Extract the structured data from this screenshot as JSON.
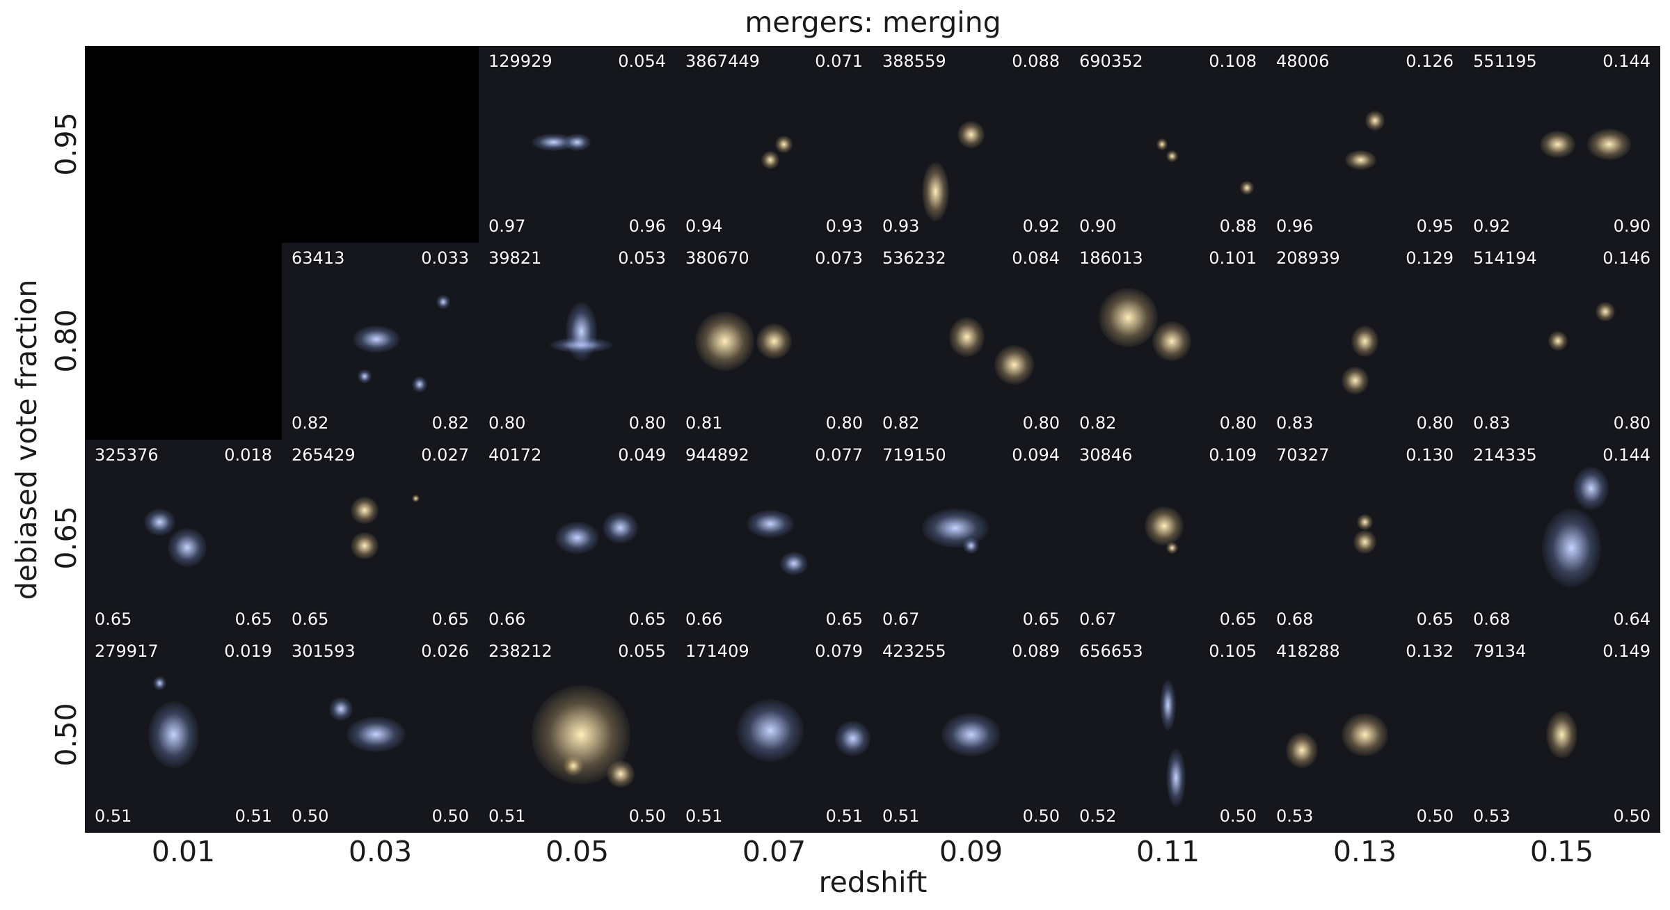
{
  "title": "mergers: merging",
  "x_label": "redshift",
  "y_label": "debiased vote fraction",
  "x_ticks": [
    "0.01",
    "0.03",
    "0.05",
    "0.07",
    "0.09",
    "0.11",
    "0.13",
    "0.15"
  ],
  "y_ticks": [
    "0.95",
    "0.80",
    "0.65",
    "0.50"
  ],
  "rows": [
    {
      "cells": [
        {
          "empty": true
        },
        {
          "empty": true
        },
        {
          "id": "129929",
          "z": "0.054",
          "bl": "0.97",
          "br": "0.96",
          "color": "blue"
        },
        {
          "id": "3867449",
          "z": "0.071",
          "bl": "0.94",
          "br": "0.93",
          "color": "yellow"
        },
        {
          "id": "388559",
          "z": "0.088",
          "bl": "0.93",
          "br": "0.92",
          "color": "yellow"
        },
        {
          "id": "690352",
          "z": "0.108",
          "bl": "0.90",
          "br": "0.88",
          "color": "yellow"
        },
        {
          "id": "48006",
          "z": "0.126",
          "bl": "0.96",
          "br": "0.95",
          "color": "yellow"
        },
        {
          "id": "551195",
          "z": "0.144",
          "bl": "0.92",
          "br": "0.90",
          "color": "yellow"
        }
      ]
    },
    {
      "cells": [
        {
          "empty": true
        },
        {
          "id": "63413",
          "z": "0.033",
          "bl": "0.82",
          "br": "0.82",
          "color": "blue"
        },
        {
          "id": "39821",
          "z": "0.053",
          "bl": "0.80",
          "br": "0.80",
          "color": "blue"
        },
        {
          "id": "380670",
          "z": "0.073",
          "bl": "0.81",
          "br": "0.80",
          "color": "yellow"
        },
        {
          "id": "536232",
          "z": "0.084",
          "bl": "0.82",
          "br": "0.80",
          "color": "yellow"
        },
        {
          "id": "186013",
          "z": "0.101",
          "bl": "0.82",
          "br": "0.80",
          "color": "yellow"
        },
        {
          "id": "208939",
          "z": "0.129",
          "bl": "0.83",
          "br": "0.80",
          "color": "yellow"
        },
        {
          "id": "514194",
          "z": "0.146",
          "bl": "0.83",
          "br": "0.80",
          "color": "yellow"
        }
      ]
    },
    {
      "cells": [
        {
          "id": "325376",
          "z": "0.018",
          "bl": "0.65",
          "br": "0.65",
          "color": "blue"
        },
        {
          "id": "265429",
          "z": "0.027",
          "bl": "0.65",
          "br": "0.65",
          "color": "yellow"
        },
        {
          "id": "40172",
          "z": "0.049",
          "bl": "0.66",
          "br": "0.65",
          "color": "blue"
        },
        {
          "id": "944892",
          "z": "0.077",
          "bl": "0.66",
          "br": "0.65",
          "color": "blue"
        },
        {
          "id": "719150",
          "z": "0.094",
          "bl": "0.67",
          "br": "0.65",
          "color": "blue"
        },
        {
          "id": "30846",
          "z": "0.109",
          "bl": "0.67",
          "br": "0.65",
          "color": "yellow"
        },
        {
          "id": "70327",
          "z": "0.130",
          "bl": "0.68",
          "br": "0.65",
          "color": "yellow"
        },
        {
          "id": "214335",
          "z": "0.144",
          "bl": "0.68",
          "br": "0.64",
          "color": "blue"
        }
      ]
    },
    {
      "cells": [
        {
          "id": "279917",
          "z": "0.019",
          "bl": "0.51",
          "br": "0.51",
          "color": "blue"
        },
        {
          "id": "301593",
          "z": "0.026",
          "bl": "0.50",
          "br": "0.50",
          "color": "blue"
        },
        {
          "id": "238212",
          "z": "0.055",
          "bl": "0.51",
          "br": "0.50",
          "color": "yellow"
        },
        {
          "id": "171409",
          "z": "0.079",
          "bl": "0.51",
          "br": "0.51",
          "color": "blue"
        },
        {
          "id": "423255",
          "z": "0.089",
          "bl": "0.51",
          "br": "0.50",
          "color": "blue"
        },
        {
          "id": "656653",
          "z": "0.105",
          "bl": "0.52",
          "br": "0.50",
          "color": "blue"
        },
        {
          "id": "418288",
          "z": "0.132",
          "bl": "0.53",
          "br": "0.50",
          "color": "yellow"
        },
        {
          "id": "79134",
          "z": "0.149",
          "bl": "0.53",
          "br": "0.50",
          "color": "yellow"
        }
      ]
    }
  ]
}
